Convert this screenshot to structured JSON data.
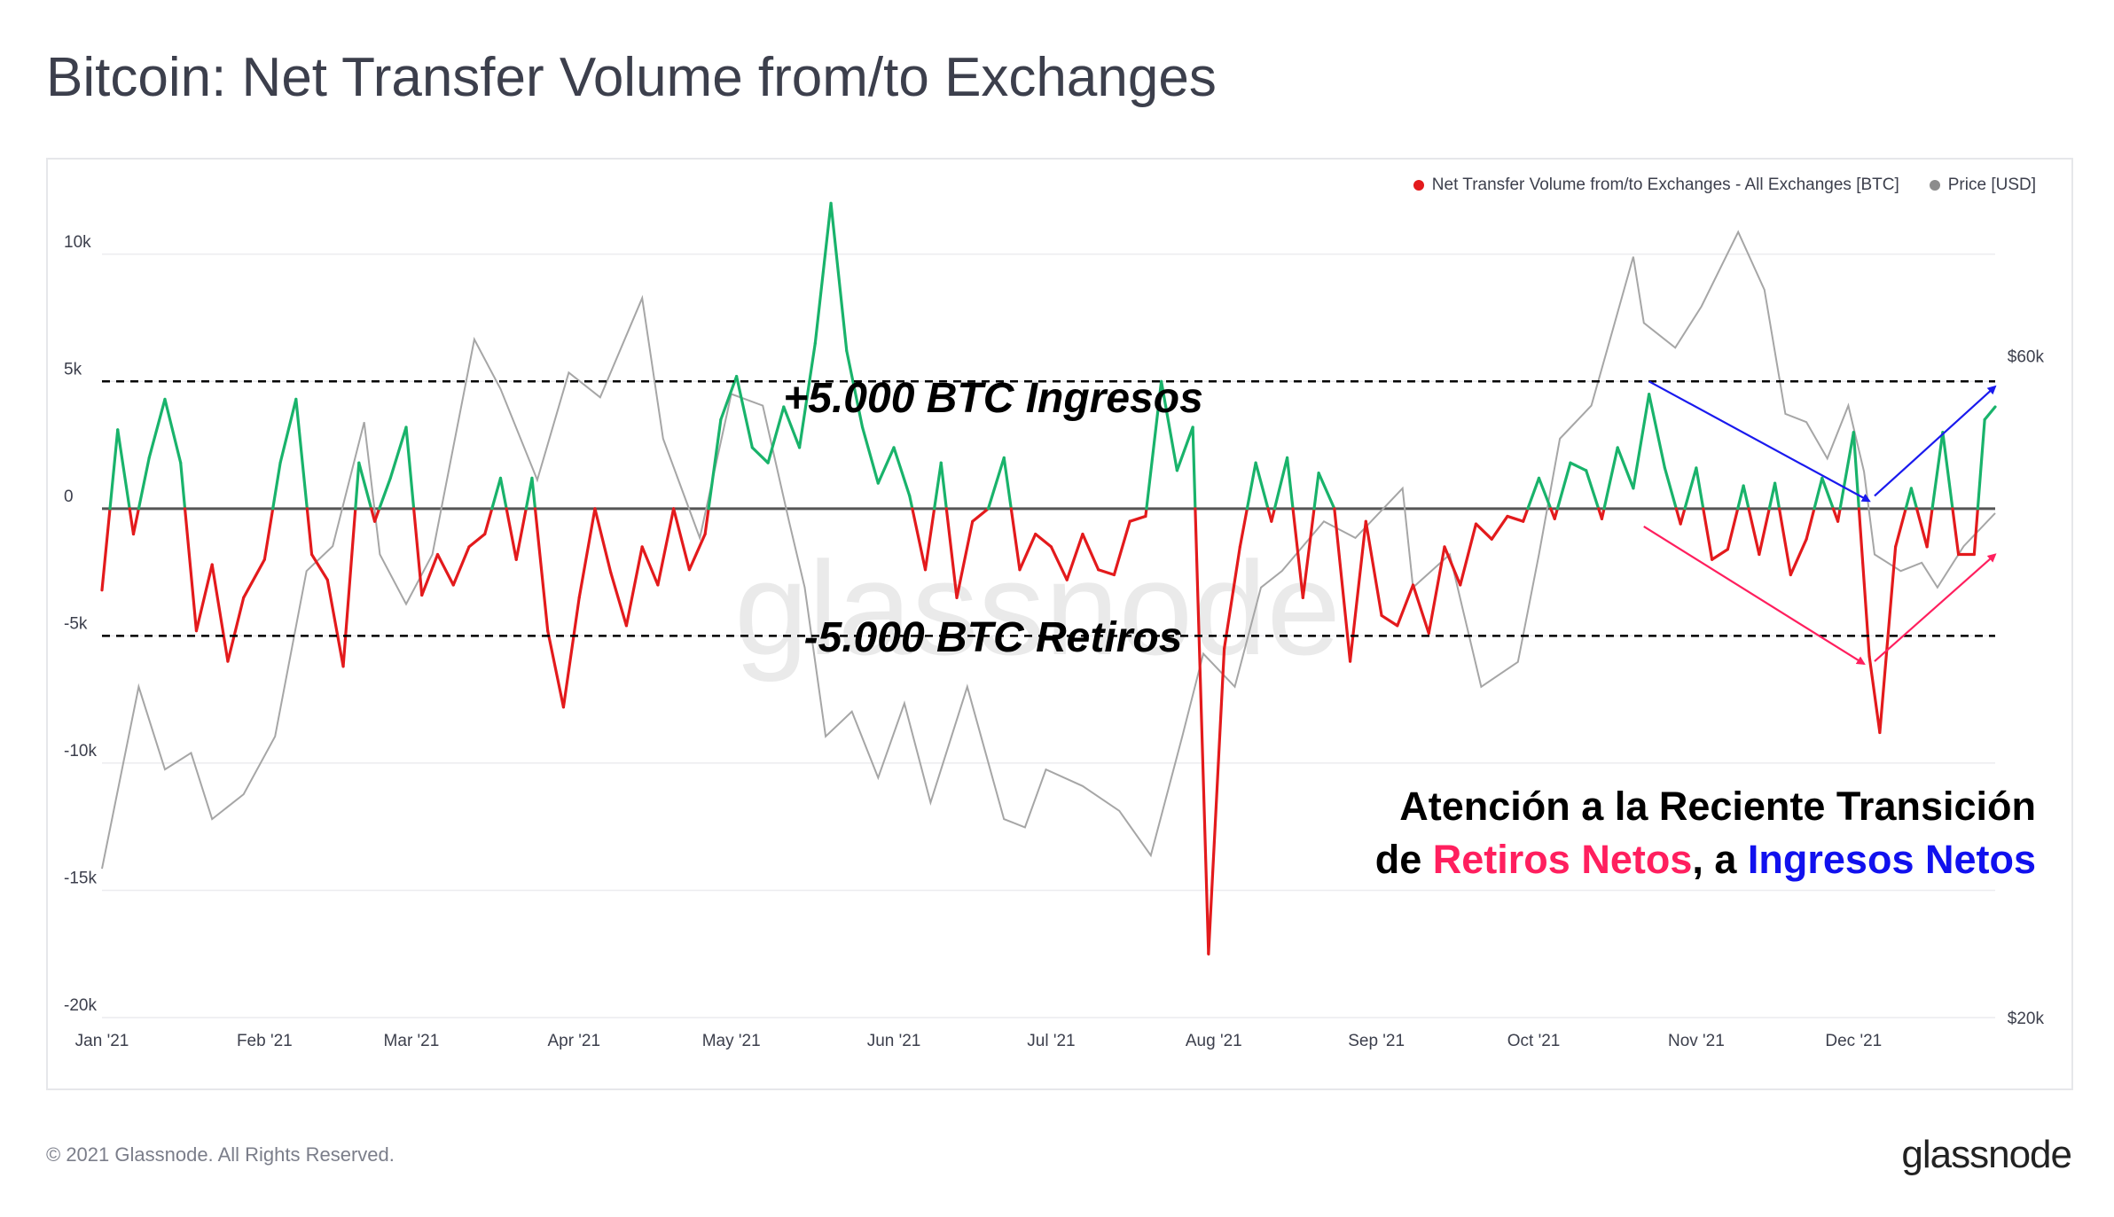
{
  "page": {
    "title": "Bitcoin: Net Transfer Volume from/to Exchanges",
    "footer": "© 2021 Glassnode. All Rights Reserved.",
    "brand": "glassnode",
    "watermark": "glassnode"
  },
  "legend": [
    {
      "label": "Net Transfer Volume from/to Exchanges - All Exchanges [BTC]",
      "color": "#e31a1c"
    },
    {
      "label": "Price [USD]",
      "color": "#8c8c8c"
    }
  ],
  "annotations": {
    "upper_label": "+5.000 BTC Ingresos",
    "lower_label": "-5.000 BTC Retiros",
    "note_line1": "Atención a la Reciente Transición",
    "note_prefix": "de ",
    "note_red": "Retiros Netos",
    "note_mid": ", a ",
    "note_blue": "Ingresos Netos"
  },
  "chart_data": {
    "type": "line",
    "y_left_ticks": [
      "10k",
      "5k",
      "0",
      "-5k",
      "-10k",
      "-15k",
      "-20k"
    ],
    "y_left_range": [
      -20000,
      12500
    ],
    "y_right_ticks": [
      "$60k",
      "$20k"
    ],
    "y_right_range": [
      20000,
      70000
    ],
    "x_ticks": [
      "Jan '21",
      "Feb '21",
      "Mar '21",
      "Apr '21",
      "May '21",
      "Jun '21",
      "Jul '21",
      "Aug '21",
      "Sep '21",
      "Oct '21",
      "Nov '21",
      "Dec '21"
    ],
    "x_range": [
      "2021-01-01",
      "2021-12-28"
    ],
    "reference_lines": [
      5000,
      -5000
    ],
    "positive_color": "#19b36b",
    "negative_color": "#e31a1c",
    "price_color": "#a6a6a6",
    "series": [
      {
        "name": "Net Transfer Volume from/to Exchanges - All Exchanges [BTC]",
        "points": [
          [
            "2021-01-01",
            -3200
          ],
          [
            "2021-01-04",
            3100
          ],
          [
            "2021-01-07",
            -1000
          ],
          [
            "2021-01-10",
            2000
          ],
          [
            "2021-01-13",
            4300
          ],
          [
            "2021-01-16",
            1800
          ],
          [
            "2021-01-19",
            -4800
          ],
          [
            "2021-01-22",
            -2200
          ],
          [
            "2021-01-25",
            -6000
          ],
          [
            "2021-01-28",
            -3500
          ],
          [
            "2021-02-01",
            -2000
          ],
          [
            "2021-02-04",
            1800
          ],
          [
            "2021-02-07",
            4300
          ],
          [
            "2021-02-10",
            -1800
          ],
          [
            "2021-02-13",
            -2800
          ],
          [
            "2021-02-16",
            -6200
          ],
          [
            "2021-02-19",
            1800
          ],
          [
            "2021-02-22",
            -500
          ],
          [
            "2021-02-25",
            1200
          ],
          [
            "2021-02-28",
            3200
          ],
          [
            "2021-03-03",
            -3400
          ],
          [
            "2021-03-06",
            -1800
          ],
          [
            "2021-03-09",
            -3000
          ],
          [
            "2021-03-12",
            -1500
          ],
          [
            "2021-03-15",
            -1000
          ],
          [
            "2021-03-18",
            1200
          ],
          [
            "2021-03-21",
            -2000
          ],
          [
            "2021-03-24",
            1200
          ],
          [
            "2021-03-27",
            -4800
          ],
          [
            "2021-03-30",
            -7800
          ],
          [
            "2021-04-02",
            -3500
          ],
          [
            "2021-04-05",
            0
          ],
          [
            "2021-04-08",
            -2500
          ],
          [
            "2021-04-11",
            -4600
          ],
          [
            "2021-04-14",
            -1500
          ],
          [
            "2021-04-17",
            -3000
          ],
          [
            "2021-04-20",
            0
          ],
          [
            "2021-04-23",
            -2400
          ],
          [
            "2021-04-26",
            -1000
          ],
          [
            "2021-04-29",
            3500
          ],
          [
            "2021-05-02",
            5200
          ],
          [
            "2021-05-05",
            2400
          ],
          [
            "2021-05-08",
            1800
          ],
          [
            "2021-05-11",
            4000
          ],
          [
            "2021-05-14",
            2400
          ],
          [
            "2021-05-17",
            6500
          ],
          [
            "2021-05-20",
            12000
          ],
          [
            "2021-05-23",
            6200
          ],
          [
            "2021-05-26",
            3200
          ],
          [
            "2021-05-29",
            1000
          ],
          [
            "2021-06-01",
            2400
          ],
          [
            "2021-06-04",
            500
          ],
          [
            "2021-06-07",
            -2400
          ],
          [
            "2021-06-10",
            1800
          ],
          [
            "2021-06-13",
            -3500
          ],
          [
            "2021-06-16",
            -500
          ],
          [
            "2021-06-19",
            0
          ],
          [
            "2021-06-22",
            2000
          ],
          [
            "2021-06-25",
            -2400
          ],
          [
            "2021-06-28",
            -1000
          ],
          [
            "2021-07-01",
            -1500
          ],
          [
            "2021-07-04",
            -2800
          ],
          [
            "2021-07-07",
            -1000
          ],
          [
            "2021-07-10",
            -2400
          ],
          [
            "2021-07-13",
            -2600
          ],
          [
            "2021-07-16",
            -500
          ],
          [
            "2021-07-19",
            -300
          ],
          [
            "2021-07-22",
            5000
          ],
          [
            "2021-07-25",
            1500
          ],
          [
            "2021-07-28",
            3200
          ],
          [
            "2021-07-31",
            -17500
          ],
          [
            "2021-08-03",
            -5500
          ],
          [
            "2021-08-06",
            -1500
          ],
          [
            "2021-08-09",
            1800
          ],
          [
            "2021-08-12",
            -500
          ],
          [
            "2021-08-15",
            2000
          ],
          [
            "2021-08-18",
            -3500
          ],
          [
            "2021-08-21",
            1400
          ],
          [
            "2021-08-24",
            0
          ],
          [
            "2021-08-27",
            -6000
          ],
          [
            "2021-08-30",
            -500
          ],
          [
            "2021-09-02",
            -4200
          ],
          [
            "2021-09-05",
            -4600
          ],
          [
            "2021-09-08",
            -3000
          ],
          [
            "2021-09-11",
            -4900
          ],
          [
            "2021-09-14",
            -1500
          ],
          [
            "2021-09-17",
            -3000
          ],
          [
            "2021-09-20",
            -600
          ],
          [
            "2021-09-23",
            -1200
          ],
          [
            "2021-09-26",
            -300
          ],
          [
            "2021-09-29",
            -500
          ],
          [
            "2021-10-02",
            1200
          ],
          [
            "2021-10-05",
            -400
          ],
          [
            "2021-10-08",
            1800
          ],
          [
            "2021-10-11",
            1500
          ],
          [
            "2021-10-14",
            -400
          ],
          [
            "2021-10-17",
            2400
          ],
          [
            "2021-10-20",
            800
          ],
          [
            "2021-10-23",
            4500
          ],
          [
            "2021-10-26",
            1600
          ],
          [
            "2021-10-29",
            -600
          ],
          [
            "2021-11-01",
            1600
          ],
          [
            "2021-11-04",
            -2000
          ],
          [
            "2021-11-07",
            -1600
          ],
          [
            "2021-11-10",
            900
          ],
          [
            "2021-11-13",
            -1800
          ],
          [
            "2021-11-16",
            1000
          ],
          [
            "2021-11-19",
            -2600
          ],
          [
            "2021-11-22",
            -1200
          ],
          [
            "2021-11-25",
            1200
          ],
          [
            "2021-11-28",
            -500
          ],
          [
            "2021-12-01",
            3000
          ],
          [
            "2021-12-04",
            -5800
          ],
          [
            "2021-12-06",
            -8800
          ],
          [
            "2021-12-09",
            -1500
          ],
          [
            "2021-12-12",
            800
          ],
          [
            "2021-12-15",
            -1500
          ],
          [
            "2021-12-18",
            3000
          ],
          [
            "2021-12-21",
            -1800
          ],
          [
            "2021-12-24",
            -1800
          ],
          [
            "2021-12-26",
            3500
          ],
          [
            "2021-12-28",
            4000
          ]
        ]
      },
      {
        "name": "Price [USD]",
        "points": [
          [
            "2021-01-01",
            29000
          ],
          [
            "2021-01-08",
            40000
          ],
          [
            "2021-01-13",
            35000
          ],
          [
            "2021-01-18",
            36000
          ],
          [
            "2021-01-22",
            32000
          ],
          [
            "2021-01-28",
            33500
          ],
          [
            "2021-02-03",
            37000
          ],
          [
            "2021-02-09",
            47000
          ],
          [
            "2021-02-14",
            48500
          ],
          [
            "2021-02-20",
            56000
          ],
          [
            "2021-02-23",
            48000
          ],
          [
            "2021-02-28",
            45000
          ],
          [
            "2021-03-05",
            48000
          ],
          [
            "2021-03-13",
            61000
          ],
          [
            "2021-03-18",
            58000
          ],
          [
            "2021-03-25",
            52500
          ],
          [
            "2021-03-31",
            59000
          ],
          [
            "2021-04-06",
            57500
          ],
          [
            "2021-04-14",
            63500
          ],
          [
            "2021-04-18",
            55000
          ],
          [
            "2021-04-25",
            49000
          ],
          [
            "2021-05-01",
            57700
          ],
          [
            "2021-05-07",
            57000
          ],
          [
            "2021-05-12",
            50000
          ],
          [
            "2021-05-15",
            46000
          ],
          [
            "2021-05-19",
            37000
          ],
          [
            "2021-05-24",
            38500
          ],
          [
            "2021-05-29",
            34500
          ],
          [
            "2021-06-03",
            39000
          ],
          [
            "2021-06-08",
            33000
          ],
          [
            "2021-06-15",
            40000
          ],
          [
            "2021-06-22",
            32000
          ],
          [
            "2021-06-26",
            31500
          ],
          [
            "2021-06-30",
            35000
          ],
          [
            "2021-07-07",
            34000
          ],
          [
            "2021-07-14",
            32500
          ],
          [
            "2021-07-20",
            29800
          ],
          [
            "2021-07-26",
            37000
          ],
          [
            "2021-07-30",
            42000
          ],
          [
            "2021-08-05",
            40000
          ],
          [
            "2021-08-10",
            46000
          ],
          [
            "2021-08-14",
            47000
          ],
          [
            "2021-08-22",
            50000
          ],
          [
            "2021-08-28",
            49000
          ],
          [
            "2021-09-06",
            52000
          ],
          [
            "2021-09-08",
            46000
          ],
          [
            "2021-09-15",
            48000
          ],
          [
            "2021-09-21",
            40000
          ],
          [
            "2021-09-28",
            41500
          ],
          [
            "2021-10-02",
            48000
          ],
          [
            "2021-10-06",
            55000
          ],
          [
            "2021-10-12",
            57000
          ],
          [
            "2021-10-16",
            61500
          ],
          [
            "2021-10-20",
            66000
          ],
          [
            "2021-10-22",
            62000
          ],
          [
            "2021-10-28",
            60500
          ],
          [
            "2021-11-02",
            63000
          ],
          [
            "2021-11-09",
            67500
          ],
          [
            "2021-11-14",
            64000
          ],
          [
            "2021-11-18",
            56500
          ],
          [
            "2021-11-22",
            56000
          ],
          [
            "2021-11-26",
            53800
          ],
          [
            "2021-11-30",
            57000
          ],
          [
            "2021-12-03",
            53000
          ],
          [
            "2021-12-05",
            48000
          ],
          [
            "2021-12-10",
            47000
          ],
          [
            "2021-12-14",
            47500
          ],
          [
            "2021-12-17",
            46000
          ],
          [
            "2021-12-22",
            48500
          ],
          [
            "2021-12-28",
            50500
          ]
        ]
      }
    ]
  }
}
